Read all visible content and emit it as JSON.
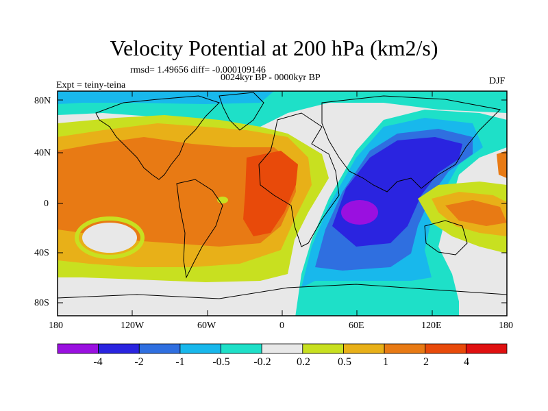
{
  "title": "Velocity Potential at 200 hPa (km2/s)",
  "stats_line": "rmsd= 1.49656 diff= -0.000109146",
  "period": "0024kyr BP - 0000kyr BP",
  "experiment": "Expt = teiny-teina",
  "season": "DJF",
  "lat_ticks": [
    "80N",
    "40N",
    "0",
    "40S",
    "80S"
  ],
  "lon_ticks": [
    "180",
    "120W",
    "60W",
    "0",
    "60E",
    "120E",
    "180"
  ],
  "colorbar": {
    "colors": [
      "#9a10e0",
      "#2a24e0",
      "#2f6fe0",
      "#18b8ec",
      "#1ee0c8",
      "#e8e8e8",
      "#c8e020",
      "#e8b018",
      "#e87a14",
      "#e84a0a",
      "#e01010"
    ],
    "labels": [
      "-4",
      "-2",
      "-1",
      "-0.5",
      "-0.2",
      "0.2",
      "0.5",
      "1",
      "2",
      "4"
    ]
  },
  "colors": {
    "land_outline": "#000000"
  }
}
